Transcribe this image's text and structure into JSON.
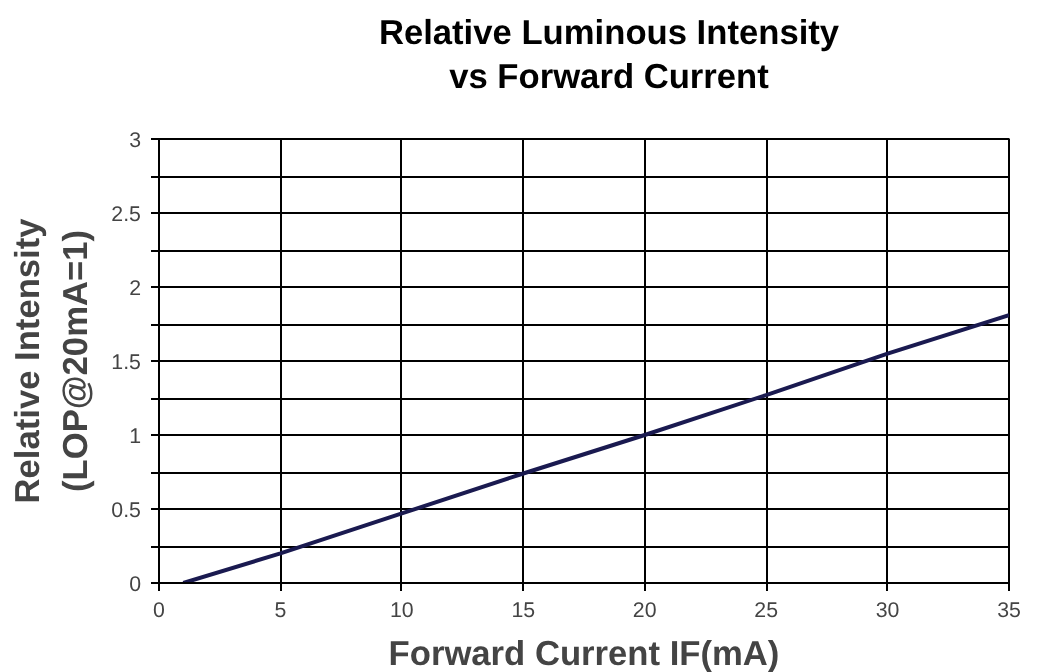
{
  "chart_data": {
    "type": "line",
    "title": "Relative Luminous Intensity\nvs Forward Current",
    "xlabel": "Forward Current IF(mA)",
    "ylabel": "Relative Intensity\n(LOP@20mA=1)",
    "x": [
      1,
      5,
      10,
      15,
      20,
      25,
      30,
      35
    ],
    "series": [
      {
        "color": "#1a1a50",
        "values": [
          0,
          0.2,
          0.47,
          0.74,
          1,
          1.27,
          1.55,
          1.81
        ]
      }
    ],
    "xlim": [
      0,
      35
    ],
    "xticks": [
      0,
      5,
      10,
      15,
      20,
      25,
      30,
      35
    ],
    "ylim": [
      0,
      3
    ],
    "yticks": [
      0,
      {
        "value": 0.25,
        "label": null
      },
      0.5,
      {
        "value": 0.75,
        "label": null
      },
      1,
      {
        "value": 1.25,
        "label": null
      },
      1.5,
      {
        "value": 1.75,
        "label": null
      },
      2,
      {
        "value": 2.25,
        "label": null
      },
      2.5,
      {
        "value": 2.75,
        "label": null
      },
      3
    ],
    "grid": true,
    "line_style": "solid",
    "marker": "none"
  }
}
